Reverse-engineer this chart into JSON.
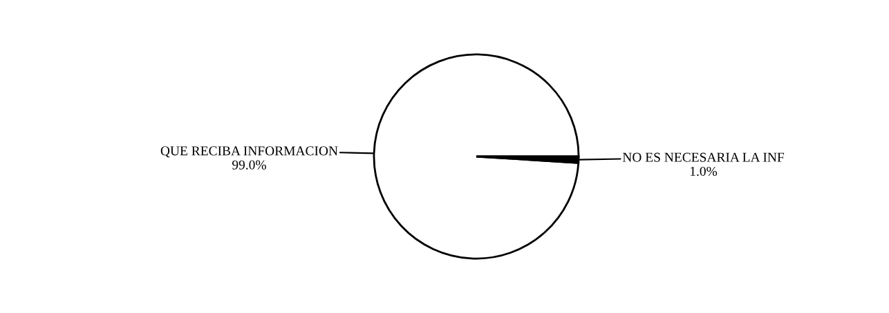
{
  "chart_data": {
    "type": "pie",
    "categories": [
      "QUE RECIBA INFORMACION",
      "NO ES NECESARIA LA INF"
    ],
    "values": [
      99.0,
      1.0
    ],
    "value_labels": [
      "99.0%",
      "1.0%"
    ],
    "colors": [
      "#ffffff",
      "#000000"
    ],
    "legend": false
  }
}
